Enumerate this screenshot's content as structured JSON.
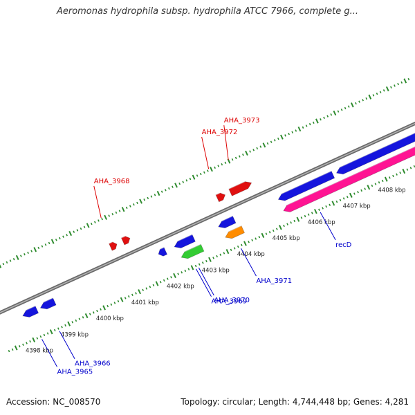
{
  "header": {
    "title": "Aeromonas hydrophila subsp. hydrophila ATCC 7966, complete g..."
  },
  "footer": {
    "accession": "Accession: NC_008570",
    "topology": "Topology: circular; Length: 4,744,448 bp; Genes: 4,281"
  },
  "colors": {
    "backbone": "#8a8a8a",
    "tick": "#2e8b2e",
    "forward_label": "#dd0000",
    "reverse_label": "#0000cc",
    "red_gene": "#e01010",
    "blue_gene": "#1515dd",
    "green_gene": "#33cc33",
    "orange_gene": "#ff8c00",
    "pink_gene": "#ff1493"
  },
  "chart_data": {
    "type": "linear-genome-map",
    "scale_labels": [
      "4398 kbp",
      "4399 kbp",
      "4400 kbp",
      "4401 kbp",
      "4402 kbp",
      "4403 kbp",
      "4404 kbp",
      "4405 kbp",
      "4406 kbp",
      "4407 kbp",
      "4408 kbp"
    ],
    "scale_kbp": [
      4398,
      4399,
      4400,
      4401,
      4402,
      4403,
      4404,
      4405,
      4406,
      4407,
      4408
    ],
    "forward_genes": [
      {
        "label": "AHA_3968",
        "start_kbp": 4400.8,
        "end_kbp": 4400.98,
        "color": "red"
      },
      {
        "label": "",
        "start_kbp": 4401.15,
        "end_kbp": 4401.35,
        "color": "red"
      },
      {
        "label": "AHA_3972",
        "start_kbp": 4403.83,
        "end_kbp": 4404.05,
        "color": "red"
      },
      {
        "label": "AHA_3973",
        "start_kbp": 4404.2,
        "end_kbp": 4404.8,
        "color": "red"
      }
    ],
    "reverse_genes": [
      {
        "label": "AHA_3965",
        "start_kbp": 4398.0,
        "end_kbp": 4398.4,
        "color": "blue",
        "lane": 1
      },
      {
        "label": "AHA_3966",
        "start_kbp": 4398.5,
        "end_kbp": 4398.9,
        "color": "blue",
        "lane": 1
      },
      {
        "label": "",
        "start_kbp": 4401.85,
        "end_kbp": 4402.05,
        "color": "blue",
        "lane": 1
      },
      {
        "label": "AHA_3969",
        "start_kbp": 4402.3,
        "end_kbp": 4402.85,
        "color": "blue",
        "lane": 1
      },
      {
        "label": "AHA_3970",
        "start_kbp": 4402.35,
        "end_kbp": 4402.95,
        "color": "green",
        "lane": 2
      },
      {
        "label": "",
        "start_kbp": 4403.55,
        "end_kbp": 4404.0,
        "color": "blue",
        "lane": 1
      },
      {
        "label": "AHA_3971",
        "start_kbp": 4403.6,
        "end_kbp": 4404.1,
        "color": "orange",
        "lane": 2
      },
      {
        "label": "",
        "start_kbp": 4405.25,
        "end_kbp": 4406.8,
        "color": "blue",
        "lane": 1
      },
      {
        "label": "",
        "start_kbp": 4406.9,
        "end_kbp": 4409.6,
        "color": "blue",
        "lane": 1
      },
      {
        "label": "recD",
        "start_kbp": 4405.25,
        "end_kbp": 4409.6,
        "color": "pink",
        "lane": 2
      }
    ]
  }
}
